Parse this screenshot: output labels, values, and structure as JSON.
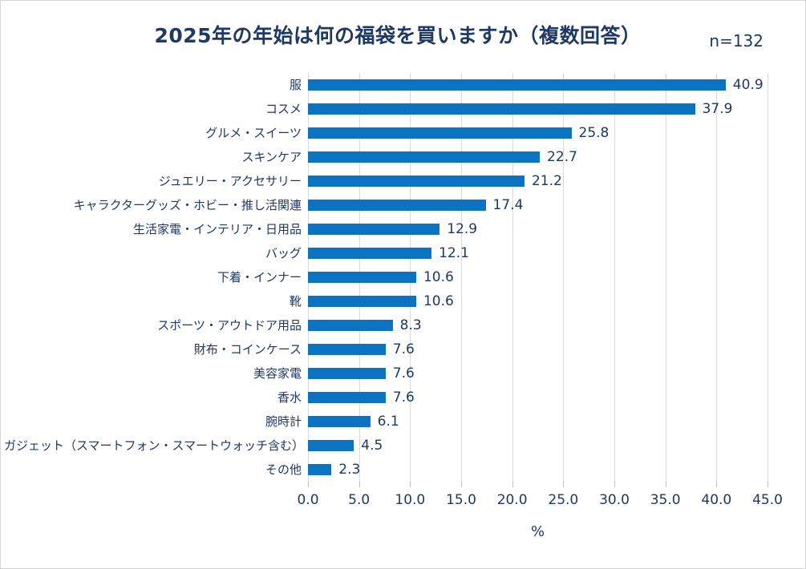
{
  "header": {
    "title": "2025年の年始は何の福袋を買いますか（複数回答）",
    "sample_label": "n=132"
  },
  "colors": {
    "bar": "#0c73c2",
    "text": "#1f3864",
    "gridline": "#d9d9d9",
    "frame_border": "#d6d6d6",
    "background": "#ffffff"
  },
  "chart_data": {
    "type": "bar",
    "orientation": "horizontal",
    "title": "2025年の年始は何の福袋を買いますか（複数回答）",
    "sample_size": "n=132",
    "categories": [
      "服",
      "コスメ",
      "グルメ・スイーツ",
      "スキンケア",
      "ジュエリー・アクセサリー",
      "キャラクターグッズ・ホビー・推し活関連",
      "生活家電・インテリア・日用品",
      "バッグ",
      "下着・インナー",
      "靴",
      "スポーツ・アウトドア用品",
      "財布・コインケース",
      "美容家電",
      "香水",
      "腕時計",
      "ガジェット（スマートフォン・スマートウォッチ含む）",
      "その他"
    ],
    "values": [
      40.9,
      37.9,
      25.8,
      22.7,
      21.2,
      17.4,
      12.9,
      12.1,
      10.6,
      10.6,
      8.3,
      7.6,
      7.6,
      7.6,
      6.1,
      4.5,
      2.3
    ],
    "value_labels": [
      "40.9",
      "37.9",
      "25.8",
      "22.7",
      "21.2",
      "17.4",
      "12.9",
      "12.1",
      "10.6",
      "10.6",
      "8.3",
      "7.6",
      "7.6",
      "7.6",
      "6.1",
      "4.5",
      "2.3"
    ],
    "xlabel": "%",
    "xlim": [
      0,
      45
    ],
    "xticks": [
      "0.0",
      "5.0",
      "10.0",
      "15.0",
      "20.0",
      "25.0",
      "30.0",
      "35.0",
      "40.0",
      "45.0"
    ],
    "grid": true,
    "legend": null
  }
}
